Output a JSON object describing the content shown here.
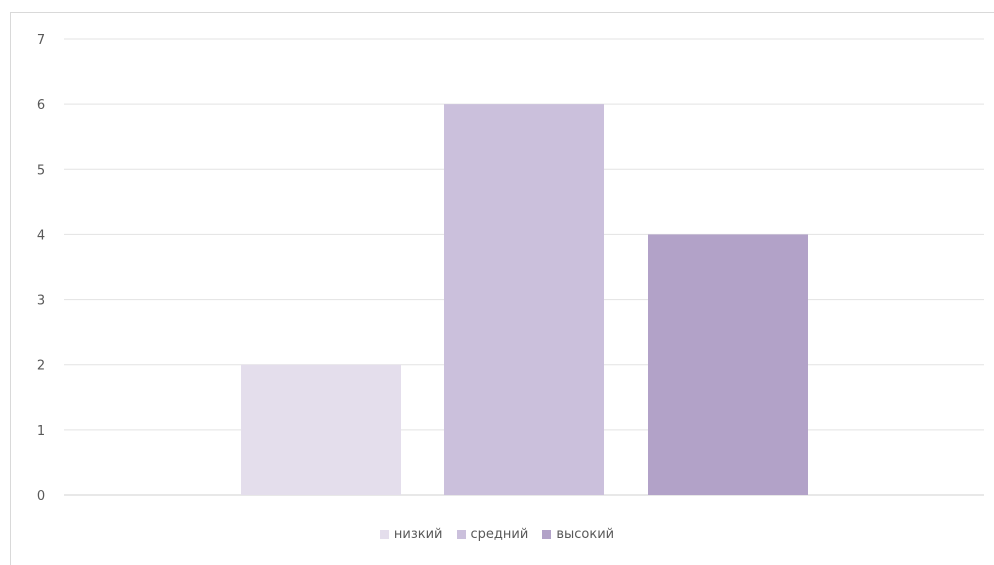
{
  "chart_data": {
    "type": "bar",
    "categories": [
      "низкий",
      "средний",
      "высокий"
    ],
    "values": [
      2,
      6,
      4
    ],
    "series_colors": [
      "#e4deec",
      "#cbc0dc",
      "#b2a2c8"
    ],
    "ylim": [
      0,
      7
    ],
    "yticks": [
      "0",
      "1",
      "2",
      "3",
      "4",
      "5",
      "6",
      "7"
    ],
    "grid": true,
    "legend_position": "bottom",
    "legend": [
      {
        "label": "низкий",
        "color": "#e4deec"
      },
      {
        "label": "средний",
        "color": "#cbc0dc"
      },
      {
        "label": "высокий",
        "color": "#b2a2c8"
      }
    ]
  }
}
